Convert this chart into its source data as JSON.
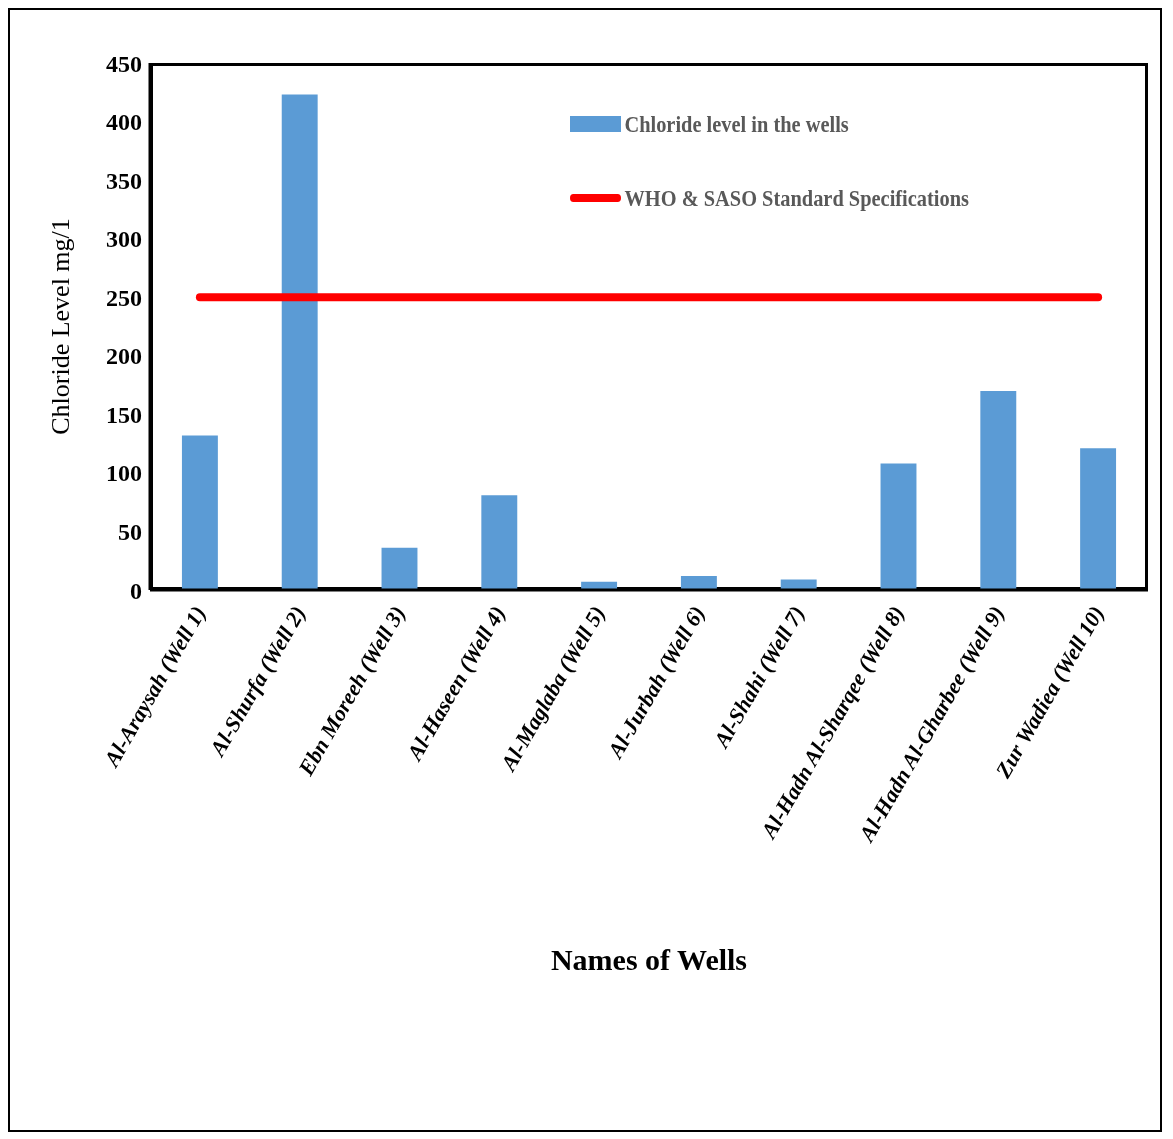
{
  "chart_data": {
    "type": "bar",
    "xlabel": "Names of  Wells",
    "ylabel": "Chloride Level mg/1",
    "categories": [
      "Al-Araysah (Well 1)",
      "Al-Shurfa (Well 2)",
      "Ebn Moreeh (Well 3)",
      "Al-Haseen (Well 4)",
      "Al-Maglaba (Well 5)",
      "Al-Jurbah (Well 6)",
      "Al-Shahi (Well 7)",
      "Al-Hadn Al-Sharqee  (Well 8)",
      "Al-Hadn Al-Gharbee  (Well 9)",
      "Zur Wadiea  (Well 10)"
    ],
    "series": [
      {
        "name": "Chloride level in the wells",
        "color": "#5b9bd5",
        "values": [
          132,
          423,
          36,
          81,
          7,
          12,
          9,
          108,
          170,
          121
        ]
      },
      {
        "name": "WHO & SASO Standard Specifications",
        "type": "line",
        "color": "#ff0000",
        "values": [
          250,
          250,
          250,
          250,
          250,
          250,
          250,
          250,
          250,
          250
        ]
      }
    ],
    "ylim": [
      0,
      450
    ],
    "yticks": [
      0,
      50,
      100,
      150,
      200,
      250,
      300,
      350,
      400,
      450
    ],
    "legend": "top right",
    "marker": "none"
  }
}
